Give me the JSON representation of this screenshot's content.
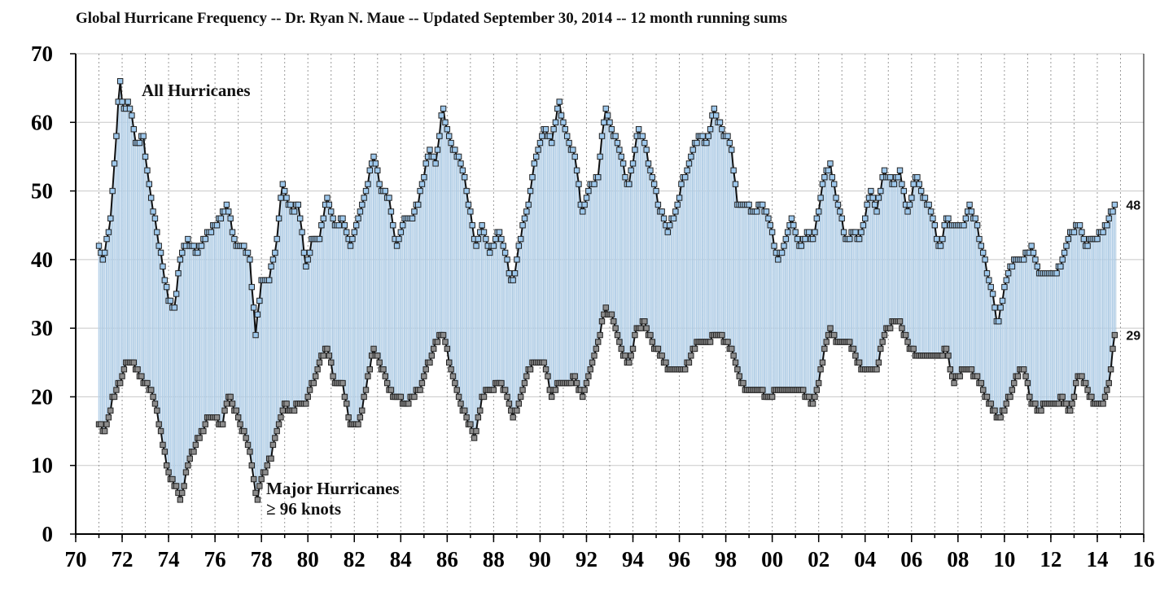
{
  "chart_data": {
    "type": "line",
    "title": "Global Hurricane Frequency -- Dr. Ryan N. Maue -- Updated September 30, 2014 -- 12 month running sums",
    "xlabel": "",
    "ylabel": "",
    "xlim": [
      1970,
      2016
    ],
    "ylim": [
      0,
      70
    ],
    "x_tick_values": [
      1970,
      1972,
      1974,
      1976,
      1978,
      1980,
      1982,
      1984,
      1986,
      1988,
      1990,
      1992,
      1994,
      1996,
      1998,
      2000,
      2002,
      2004,
      2006,
      2008,
      2010,
      2012,
      2014,
      2016
    ],
    "x_tick_labels": [
      "70",
      "72",
      "74",
      "76",
      "78",
      "80",
      "82",
      "84",
      "86",
      "88",
      "90",
      "92",
      "94",
      "96",
      "98",
      "00",
      "02",
      "04",
      "06",
      "08",
      "10",
      "12",
      "14",
      "16"
    ],
    "y_ticks": [
      0,
      10,
      20,
      30,
      40,
      50,
      60,
      70
    ],
    "grid": {
      "horizontal": true,
      "vertical_dashed": true
    },
    "fill_between_series": true,
    "x_resolution": "monthly",
    "series": [
      {
        "name": "All Hurricanes",
        "color": "#9ec8ec",
        "anchors": [
          [
            1971.0,
            42
          ],
          [
            1971.2,
            40
          ],
          [
            1971.5,
            46
          ],
          [
            1971.7,
            56
          ],
          [
            1971.9,
            66
          ],
          [
            1972.05,
            62
          ],
          [
            1972.3,
            63
          ],
          [
            1972.6,
            57
          ],
          [
            1972.9,
            58
          ],
          [
            1973.2,
            50
          ],
          [
            1973.5,
            44
          ],
          [
            1973.8,
            38
          ],
          [
            1974.0,
            34
          ],
          [
            1974.25,
            33
          ],
          [
            1974.5,
            40
          ],
          [
            1974.8,
            43
          ],
          [
            1975.2,
            41
          ],
          [
            1975.5,
            43
          ],
          [
            1975.8,
            44
          ],
          [
            1976.2,
            46
          ],
          [
            1976.5,
            48
          ],
          [
            1976.9,
            42
          ],
          [
            1977.2,
            42
          ],
          [
            1977.5,
            40
          ],
          [
            1977.75,
            29
          ],
          [
            1978.0,
            37
          ],
          [
            1978.3,
            37
          ],
          [
            1978.6,
            41
          ],
          [
            1978.9,
            51
          ],
          [
            1979.3,
            47
          ],
          [
            1979.6,
            48
          ],
          [
            1979.9,
            39
          ],
          [
            1980.2,
            43
          ],
          [
            1980.5,
            43
          ],
          [
            1980.8,
            49
          ],
          [
            1981.2,
            45
          ],
          [
            1981.5,
            46
          ],
          [
            1981.8,
            42
          ],
          [
            1982.2,
            46
          ],
          [
            1982.5,
            50
          ],
          [
            1982.8,
            55
          ],
          [
            1983.2,
            50
          ],
          [
            1983.5,
            49
          ],
          [
            1983.8,
            42
          ],
          [
            1984.2,
            46
          ],
          [
            1984.5,
            46
          ],
          [
            1984.8,
            49
          ],
          [
            1985.2,
            56
          ],
          [
            1985.5,
            54
          ],
          [
            1985.8,
            62
          ],
          [
            1986.2,
            56
          ],
          [
            1986.5,
            55
          ],
          [
            1986.8,
            51
          ],
          [
            1987.2,
            42
          ],
          [
            1987.5,
            45
          ],
          [
            1987.8,
            41
          ],
          [
            1988.2,
            44
          ],
          [
            1988.5,
            41
          ],
          [
            1988.8,
            36
          ],
          [
            1989.2,
            44
          ],
          [
            1989.5,
            48
          ],
          [
            1989.8,
            55
          ],
          [
            1990.2,
            59
          ],
          [
            1990.5,
            57
          ],
          [
            1990.8,
            63
          ],
          [
            1991.2,
            57
          ],
          [
            1991.5,
            55
          ],
          [
            1991.8,
            47
          ],
          [
            1992.2,
            51
          ],
          [
            1992.5,
            52
          ],
          [
            1992.8,
            62
          ],
          [
            1993.2,
            58
          ],
          [
            1993.5,
            55
          ],
          [
            1993.8,
            50
          ],
          [
            1994.2,
            59
          ],
          [
            1994.5,
            57
          ],
          [
            1994.8,
            52
          ],
          [
            1995.2,
            47
          ],
          [
            1995.5,
            44
          ],
          [
            1995.8,
            47
          ],
          [
            1996.2,
            52
          ],
          [
            1996.5,
            55
          ],
          [
            1996.8,
            58
          ],
          [
            1997.2,
            57
          ],
          [
            1997.5,
            62
          ],
          [
            1997.8,
            59
          ],
          [
            1998.2,
            57
          ],
          [
            1998.5,
            48
          ],
          [
            1998.8,
            48
          ],
          [
            1999.2,
            47
          ],
          [
            1999.5,
            48
          ],
          [
            1999.8,
            47
          ],
          [
            2000.2,
            40
          ],
          [
            2000.5,
            42
          ],
          [
            2000.8,
            46
          ],
          [
            2001.2,
            42
          ],
          [
            2001.5,
            44
          ],
          [
            2001.8,
            43
          ],
          [
            2002.2,
            52
          ],
          [
            2002.5,
            54
          ],
          [
            2002.8,
            48
          ],
          [
            2003.2,
            43
          ],
          [
            2003.5,
            44
          ],
          [
            2003.8,
            43
          ],
          [
            2004.2,
            50
          ],
          [
            2004.5,
            47
          ],
          [
            2004.8,
            53
          ],
          [
            2005.2,
            51
          ],
          [
            2005.5,
            53
          ],
          [
            2005.8,
            47
          ],
          [
            2006.2,
            52
          ],
          [
            2006.5,
            49
          ],
          [
            2006.8,
            48
          ],
          [
            2007.2,
            41
          ],
          [
            2007.5,
            46
          ],
          [
            2007.8,
            45
          ],
          [
            2008.2,
            45
          ],
          [
            2008.5,
            48
          ],
          [
            2008.8,
            45
          ],
          [
            2009.2,
            39
          ],
          [
            2009.5,
            35
          ],
          [
            2009.7,
            30
          ],
          [
            2009.9,
            34
          ],
          [
            2010.2,
            39
          ],
          [
            2010.5,
            40
          ],
          [
            2010.8,
            40
          ],
          [
            2011.2,
            42
          ],
          [
            2011.5,
            38
          ],
          [
            2011.8,
            38
          ],
          [
            2012.2,
            38
          ],
          [
            2012.5,
            40
          ],
          [
            2012.8,
            44
          ],
          [
            2013.2,
            45
          ],
          [
            2013.5,
            42
          ],
          [
            2013.8,
            43
          ],
          [
            2014.2,
            44
          ],
          [
            2014.5,
            46
          ],
          [
            2014.75,
            48
          ]
        ],
        "end_label": "48"
      },
      {
        "name": "Major Hurricanes ≥ 96 knots",
        "color": "#8c8c8c",
        "anchors": [
          [
            1971.0,
            16
          ],
          [
            1971.3,
            15
          ],
          [
            1971.6,
            20
          ],
          [
            1971.9,
            22
          ],
          [
            1972.2,
            25
          ],
          [
            1972.5,
            25
          ],
          [
            1972.8,
            23
          ],
          [
            1973.2,
            21
          ],
          [
            1973.5,
            18
          ],
          [
            1973.8,
            12
          ],
          [
            1974.1,
            8
          ],
          [
            1974.3,
            7
          ],
          [
            1974.5,
            5
          ],
          [
            1974.7,
            8
          ],
          [
            1974.9,
            11
          ],
          [
            1975.3,
            14
          ],
          [
            1975.7,
            17
          ],
          [
            1976.0,
            17
          ],
          [
            1976.3,
            16
          ],
          [
            1976.6,
            20
          ],
          [
            1976.9,
            18
          ],
          [
            1977.2,
            15
          ],
          [
            1977.5,
            12
          ],
          [
            1977.8,
            5
          ],
          [
            1978.1,
            9
          ],
          [
            1978.4,
            11
          ],
          [
            1978.7,
            16
          ],
          [
            1979.0,
            19
          ],
          [
            1979.3,
            18
          ],
          [
            1979.6,
            19
          ],
          [
            1979.9,
            19
          ],
          [
            1980.2,
            22
          ],
          [
            1980.5,
            25
          ],
          [
            1980.8,
            27
          ],
          [
            1981.2,
            22
          ],
          [
            1981.5,
            22
          ],
          [
            1981.8,
            16
          ],
          [
            1982.2,
            16
          ],
          [
            1982.5,
            21
          ],
          [
            1982.8,
            27
          ],
          [
            1983.2,
            24
          ],
          [
            1983.5,
            21
          ],
          [
            1983.8,
            20
          ],
          [
            1984.2,
            19
          ],
          [
            1984.5,
            20
          ],
          [
            1984.8,
            21
          ],
          [
            1985.2,
            25
          ],
          [
            1985.5,
            28
          ],
          [
            1985.8,
            29
          ],
          [
            1986.2,
            24
          ],
          [
            1986.5,
            20
          ],
          [
            1986.8,
            17
          ],
          [
            1987.2,
            14
          ],
          [
            1987.5,
            20
          ],
          [
            1987.8,
            21
          ],
          [
            1988.2,
            22
          ],
          [
            1988.5,
            21
          ],
          [
            1988.8,
            17
          ],
          [
            1989.2,
            20
          ],
          [
            1989.5,
            24
          ],
          [
            1989.8,
            25
          ],
          [
            1990.2,
            25
          ],
          [
            1990.5,
            20
          ],
          [
            1990.8,
            22
          ],
          [
            1991.2,
            22
          ],
          [
            1991.5,
            23
          ],
          [
            1991.8,
            20
          ],
          [
            1992.2,
            24
          ],
          [
            1992.5,
            28
          ],
          [
            1992.8,
            33
          ],
          [
            1993.2,
            31
          ],
          [
            1993.5,
            27
          ],
          [
            1993.8,
            25
          ],
          [
            1994.2,
            30
          ],
          [
            1994.5,
            31
          ],
          [
            1994.8,
            28
          ],
          [
            1995.2,
            26
          ],
          [
            1995.5,
            24
          ],
          [
            1995.8,
            24
          ],
          [
            1996.2,
            24
          ],
          [
            1996.5,
            26
          ],
          [
            1996.8,
            28
          ],
          [
            1997.2,
            28
          ],
          [
            1997.5,
            29
          ],
          [
            1997.8,
            29
          ],
          [
            1998.2,
            27
          ],
          [
            1998.5,
            24
          ],
          [
            1998.8,
            21
          ],
          [
            1999.2,
            21
          ],
          [
            1999.5,
            21
          ],
          [
            1999.8,
            20
          ],
          [
            2000.2,
            21
          ],
          [
            2000.5,
            21
          ],
          [
            2000.8,
            21
          ],
          [
            2001.2,
            21
          ],
          [
            2001.5,
            20
          ],
          [
            2001.8,
            19
          ],
          [
            2002.2,
            26
          ],
          [
            2002.5,
            30
          ],
          [
            2002.8,
            28
          ],
          [
            2003.2,
            28
          ],
          [
            2003.5,
            27
          ],
          [
            2003.8,
            24
          ],
          [
            2004.2,
            24
          ],
          [
            2004.5,
            24
          ],
          [
            2004.8,
            29
          ],
          [
            2005.2,
            31
          ],
          [
            2005.5,
            31
          ],
          [
            2005.8,
            28
          ],
          [
            2006.2,
            26
          ],
          [
            2006.5,
            26
          ],
          [
            2006.8,
            26
          ],
          [
            2007.2,
            26
          ],
          [
            2007.5,
            27
          ],
          [
            2007.8,
            22
          ],
          [
            2008.2,
            24
          ],
          [
            2008.5,
            24
          ],
          [
            2008.8,
            23
          ],
          [
            2009.2,
            20
          ],
          [
            2009.5,
            18
          ],
          [
            2009.8,
            17
          ],
          [
            2010.2,
            20
          ],
          [
            2010.5,
            23
          ],
          [
            2010.8,
            24
          ],
          [
            2011.2,
            19
          ],
          [
            2011.5,
            18
          ],
          [
            2011.8,
            19
          ],
          [
            2012.2,
            19
          ],
          [
            2012.5,
            20
          ],
          [
            2012.8,
            18
          ],
          [
            2013.2,
            23
          ],
          [
            2013.5,
            22
          ],
          [
            2013.8,
            19
          ],
          [
            2014.2,
            19
          ],
          [
            2014.5,
            22
          ],
          [
            2014.75,
            29
          ]
        ],
        "end_label": "29"
      }
    ],
    "annotations": {
      "all_label": "All Hurricanes",
      "major_label_line1": "Major Hurricanes",
      "major_label_line2": "≥ 96 knots"
    }
  }
}
